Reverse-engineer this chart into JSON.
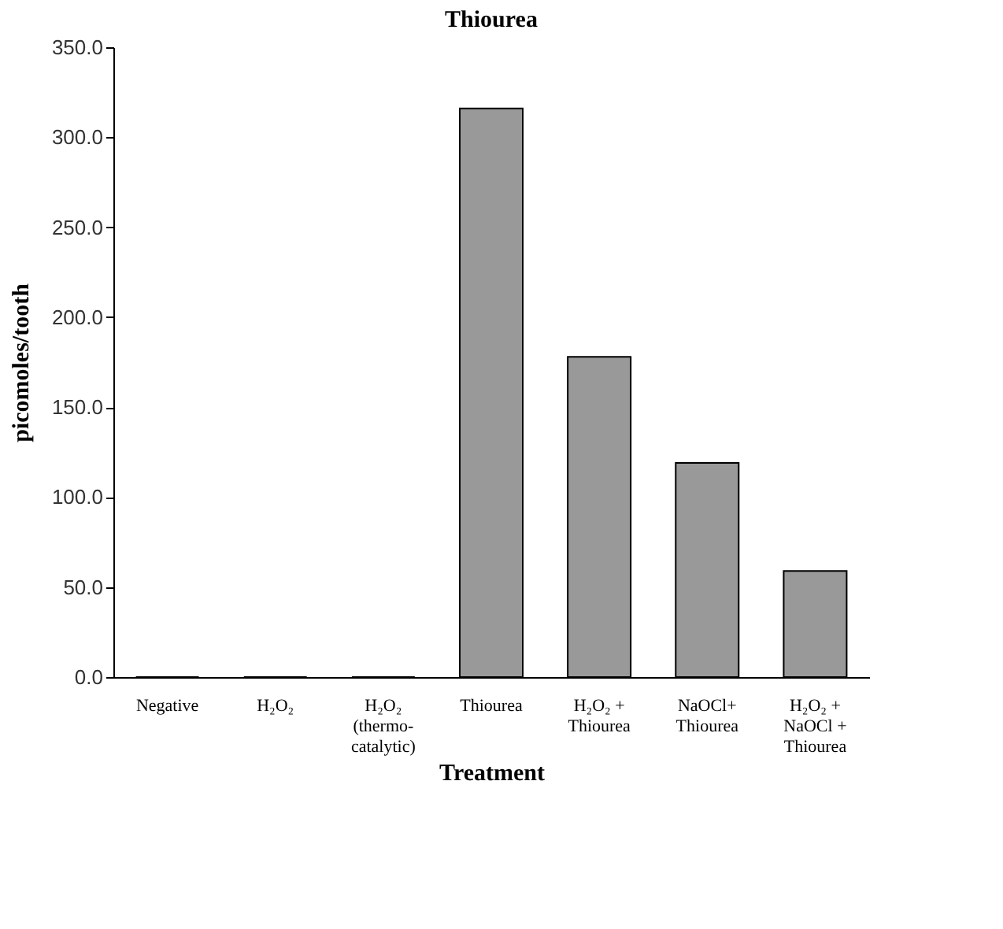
{
  "chart_data": {
    "type": "bar",
    "title": "Thiourea",
    "xlabel": "Treatment",
    "ylabel": "picomoles/tooth",
    "categories": [
      "Negative",
      "H₂O₂",
      "H₂O₂\n(thermo-\ncatalytic)",
      "Thiourea",
      "H₂O₂ +\nThiourea",
      "NaOCl+\nThiourea",
      "H₂O₂ +\nNaOCl +\nThiourea"
    ],
    "values": [
      0,
      0,
      0,
      316,
      178,
      119,
      59
    ],
    "color": "#999999",
    "ylim": [
      0,
      350
    ],
    "yticks": [
      {
        "value": 0,
        "label": "0.0"
      },
      {
        "value": 50,
        "label": "50.0"
      },
      {
        "value": 100,
        "label": "100.0"
      },
      {
        "value": 150,
        "label": "150.0"
      },
      {
        "value": 200,
        "label": "200.0"
      },
      {
        "value": 250,
        "label": "250.0"
      },
      {
        "value": 300,
        "label": "300.0"
      },
      {
        "value": 350,
        "label": "350.0"
      }
    ],
    "grid": false
  }
}
